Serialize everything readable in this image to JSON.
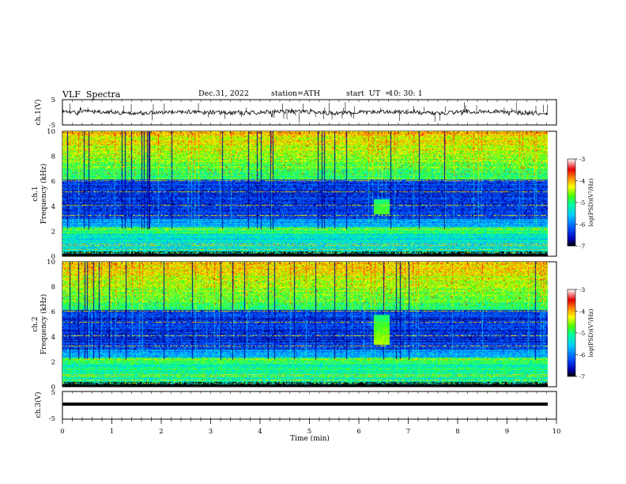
{
  "header": {
    "title": "VLF  Spectra",
    "date": "Dec.31, 2022",
    "station": "station=ATH",
    "start_label": "start  UT  =",
    "start_time": "10: 30: 1"
  },
  "chart_data": [
    {
      "type": "line",
      "name": "ch1-waveform",
      "ylabel": "ch.1(V)",
      "ylim": [
        -5,
        5
      ],
      "yticks": [
        "5",
        "-5"
      ],
      "xlim": [
        0,
        10
      ],
      "trace_color": "#000000"
    },
    {
      "type": "heatmap",
      "name": "ch1-spectrogram",
      "ylabel_top": "ch.1",
      "ylabel": "Frequency  (kHz)",
      "ylim": [
        0,
        10
      ],
      "yticks": [
        "0",
        "2",
        "4",
        "6",
        "8",
        "10"
      ],
      "xlim": [
        0,
        9.82
      ],
      "burst": {
        "t_start": 6.3,
        "t_end": 6.62,
        "f_low": 3.4,
        "f_high": 4.6
      },
      "colorbar": {
        "label": "log(PSD)(V²/Hz)",
        "range": [
          -7,
          -3
        ],
        "ticks": [
          "-3",
          "-4",
          "-5",
          "-6",
          "-7"
        ]
      }
    },
    {
      "type": "heatmap",
      "name": "ch2-spectrogram",
      "ylabel_top": "ch.2",
      "ylabel": "Frequency  (kHz)",
      "ylim": [
        0,
        10
      ],
      "yticks": [
        "0",
        "2",
        "4",
        "6",
        "8",
        "10"
      ],
      "xlim": [
        0,
        9.82
      ],
      "burst": {
        "t_start": 6.3,
        "t_end": 6.62,
        "f_low": 3.4,
        "f_high": 5.8
      },
      "colorbar": {
        "label": "log(PSD)(V²/Hz)",
        "range": [
          -7,
          -3
        ],
        "ticks": [
          "-3",
          "-4",
          "-5",
          "-6",
          "-7"
        ]
      }
    },
    {
      "type": "line",
      "name": "ch3-waveform",
      "ylabel": "ch.3(V)",
      "ylim": [
        -5,
        5
      ],
      "yticks": [
        "5",
        "-5"
      ],
      "xlim": [
        0,
        10
      ],
      "trace_color": "#000000"
    }
  ],
  "x_axis": {
    "label": "Time  (min)",
    "range": [
      0,
      10
    ],
    "ticks": [
      "0",
      "1",
      "2",
      "3",
      "4",
      "5",
      "6",
      "7",
      "8",
      "9",
      "10"
    ]
  },
  "colormap": [
    "#000000",
    "#0000b4",
    "#0050ff",
    "#00c8ff",
    "#00ffa0",
    "#50ff00",
    "#ffff00",
    "#ff8c00",
    "#e60000",
    "#ffffff"
  ]
}
